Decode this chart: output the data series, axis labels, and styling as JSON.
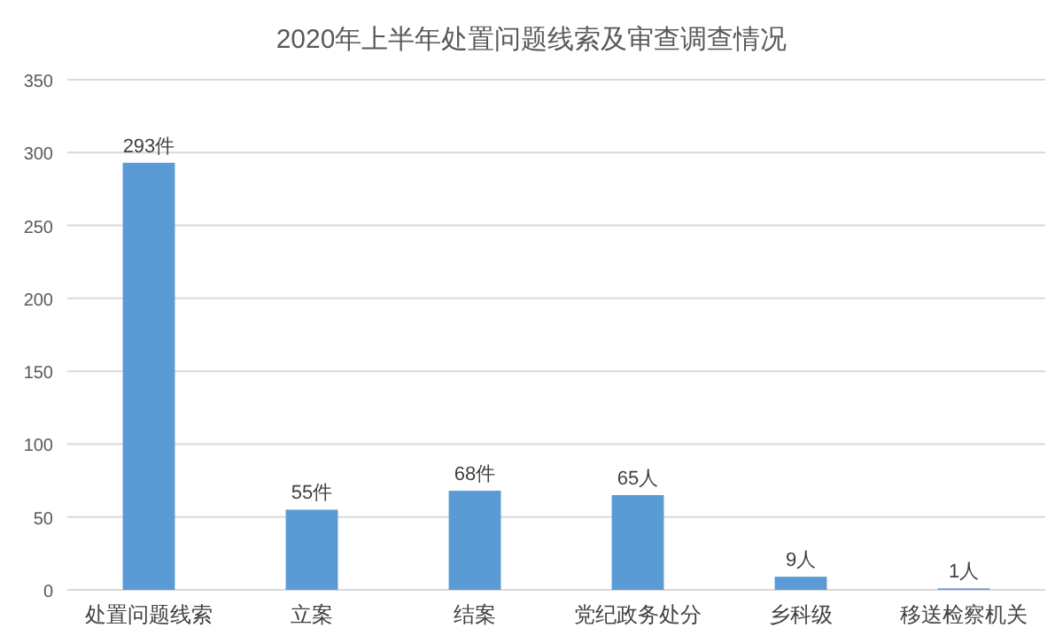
{
  "chart_data": {
    "type": "bar",
    "title": "2020年上半年处置问题线索及审查调查情况",
    "categories": [
      "处置问题线索",
      "立案",
      "结案",
      "党纪政务处分",
      "乡科级",
      "移送检察机关"
    ],
    "values": [
      293,
      55,
      68,
      65,
      9,
      1
    ],
    "value_labels": [
      "293件",
      "55件",
      "68件",
      "65人",
      "9人",
      "1人"
    ],
    "color": "#5b9bd5",
    "ylim": [
      0,
      350
    ],
    "yticks": [
      0,
      50,
      100,
      150,
      200,
      250,
      300,
      350
    ],
    "grid": "y"
  }
}
